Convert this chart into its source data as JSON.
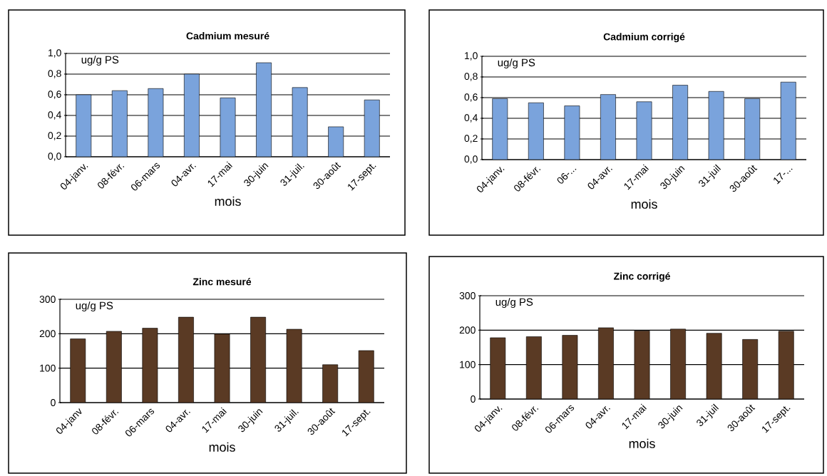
{
  "chart_data": [
    {
      "type": "bar",
      "title": "Cadmium mesuré",
      "xlabel": "mois",
      "ylabel": "ug/g PS",
      "color": "#7aa3dc",
      "grid": "y",
      "categories": [
        "04-janv.",
        "08-févr.",
        "06-mars",
        "04-avr.",
        "17-mai",
        "30-juin",
        "31-juil.",
        "30-août",
        "17-sept."
      ],
      "values": [
        0.6,
        0.64,
        0.66,
        0.8,
        0.57,
        0.91,
        0.67,
        0.29,
        0.55
      ],
      "ylim": [
        0,
        1
      ],
      "yticks": [
        {
          "value": 0,
          "label": "0,0"
        },
        {
          "value": 0.2,
          "label": "0,2"
        },
        {
          "value": 0.4,
          "label": "0,4"
        },
        {
          "value": 0.6,
          "label": "0,6"
        },
        {
          "value": 0.8,
          "label": "0,8"
        },
        {
          "value": 1,
          "label": "1,0"
        }
      ]
    },
    {
      "type": "bar",
      "title": "Cadmium corrigé",
      "xlabel": "mois",
      "ylabel": "ug/g PS",
      "color": "#7aa3dc",
      "grid": "y",
      "categories": [
        "04-janv.",
        "08-févr.",
        "06-...",
        "04-avr.",
        "17-mai",
        "30-juin",
        "31-juil",
        "30-août",
        "17-..."
      ],
      "values": [
        0.59,
        0.55,
        0.52,
        0.63,
        0.56,
        0.72,
        0.66,
        0.59,
        0.75
      ],
      "ylim": [
        0,
        1
      ],
      "yticks": [
        {
          "value": 0,
          "label": "0,0"
        },
        {
          "value": 0.2,
          "label": "0,2"
        },
        {
          "value": 0.4,
          "label": "0,4"
        },
        {
          "value": 0.6,
          "label": "0,6"
        },
        {
          "value": 0.8,
          "label": "0,8"
        },
        {
          "value": 1,
          "label": "1,0"
        }
      ]
    },
    {
      "type": "bar",
      "title": "Zinc mesuré",
      "xlabel": "mois",
      "ylabel": "ug/g PS",
      "color": "#5a3a24",
      "grid": "y",
      "categories": [
        "04-janv",
        "08-févr.",
        "06-mars",
        "04-avr.",
        "17-mai",
        "30-juin",
        "31-juil.",
        "30-août",
        "17-sept."
      ],
      "values": [
        185,
        207,
        216,
        248,
        199,
        248,
        213,
        110,
        151
      ],
      "ylim": [
        0,
        300
      ],
      "yticks": [
        0,
        100,
        200,
        300
      ]
    },
    {
      "type": "bar",
      "title": "Zinc corrigé",
      "xlabel": "mois",
      "ylabel": "ug/g PS",
      "color": "#5a3a24",
      "grid": "y",
      "categories": [
        "04-janv.",
        "08-févr.",
        "06-mars",
        "04-avr.",
        "17-mai",
        "30-juin",
        "31-juil",
        "30-août",
        "17-sept."
      ],
      "values": [
        178,
        181,
        185,
        207,
        198,
        203,
        191,
        173,
        197
      ],
      "ylim": [
        0,
        300
      ],
      "yticks": [
        0,
        100,
        200,
        300
      ]
    }
  ]
}
